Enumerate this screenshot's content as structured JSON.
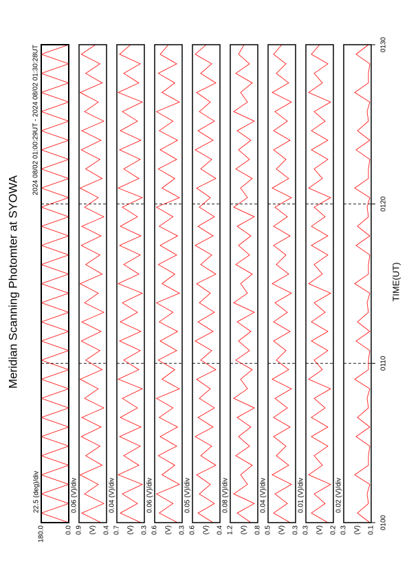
{
  "chart_data": {
    "type": "line",
    "title": "Meridian Scanning Photomter at SYOWA",
    "subtitle": "2024 08/02 01:00:29UT - 2024 08/02 01:30:28UT",
    "xlabel": "TIME(UT)",
    "xlim": [
      0,
      30
    ],
    "xticks": [
      {
        "value": 0,
        "label": "0100"
      },
      {
        "value": 10,
        "label": "0110"
      },
      {
        "value": 20,
        "label": "0120"
      },
      {
        "value": 30,
        "label": "0130"
      }
    ],
    "grid": true,
    "x": [
      0,
      0.6,
      1.2,
      1.8,
      2.4,
      3,
      3.6,
      4.2,
      4.8,
      5.4,
      6,
      6.6,
      7.2,
      7.8,
      8.4,
      9,
      9.6,
      10.2,
      10.8,
      11.4,
      12,
      12.6,
      13.2,
      13.8,
      14.4,
      15,
      15.6,
      16.2,
      16.8,
      17.4,
      18,
      18.6,
      19.2,
      19.8,
      20.4,
      21,
      21.6,
      22.2,
      22.8,
      23.4,
      24,
      24.6,
      25.2,
      25.8,
      26.4,
      27,
      27.6,
      28.2,
      28.8,
      29.4,
      30
    ],
    "panels": [
      {
        "scale_label": "22.5 (deg)/div",
        "color": "#ff0000",
        "ylim": [
          0,
          180
        ],
        "yticks": [
          {
            "value": 0,
            "label": "0.0"
          },
          {
            "value": 180,
            "label": "180.0"
          }
        ],
        "values": [
          0,
          180,
          0,
          180,
          0,
          180,
          0,
          180,
          0,
          180,
          0,
          180,
          0,
          180,
          0,
          180,
          0,
          180,
          0,
          180,
          0,
          180,
          0,
          180,
          0,
          180,
          0,
          180,
          0,
          180,
          0,
          180,
          0,
          180,
          0,
          180,
          0,
          180,
          0,
          180,
          0,
          180,
          0,
          180,
          0,
          180,
          0,
          180,
          0,
          180,
          0
        ]
      },
      {
        "scale_label": "0.06 (V)/div",
        "unit": "(V)",
        "color": "#ff0000",
        "ylim": [
          0.4,
          0.9
        ],
        "yticks": [
          0.4,
          0.9
        ],
        "values": [
          0.5,
          0.85,
          0.45,
          0.8,
          0.55,
          0.88,
          0.48,
          0.78,
          0.52,
          0.86,
          0.5,
          0.85,
          0.45,
          0.8,
          0.55,
          0.88,
          0.48,
          0.78,
          0.52,
          0.86,
          0.5,
          0.85,
          0.45,
          0.8,
          0.55,
          0.88,
          0.48,
          0.78,
          0.52,
          0.86,
          0.5,
          0.85,
          0.45,
          0.8,
          0.55,
          0.88,
          0.48,
          0.78,
          0.52,
          0.86,
          0.5,
          0.85,
          0.45,
          0.8,
          0.55,
          0.88,
          0.48,
          0.78,
          0.52,
          0.86,
          0.6
        ]
      },
      {
        "scale_label": "0.04 (V)/div",
        "unit": "(V)",
        "color": "#ff0000",
        "ylim": [
          0.3,
          0.7
        ],
        "yticks": [
          0.3,
          0.7
        ],
        "values": [
          0.35,
          0.65,
          0.4,
          0.62,
          0.33,
          0.68,
          0.38,
          0.6,
          0.36,
          0.66,
          0.35,
          0.65,
          0.4,
          0.62,
          0.33,
          0.68,
          0.38,
          0.6,
          0.36,
          0.66,
          0.35,
          0.65,
          0.4,
          0.62,
          0.33,
          0.68,
          0.38,
          0.6,
          0.36,
          0.66,
          0.35,
          0.65,
          0.4,
          0.62,
          0.33,
          0.68,
          0.38,
          0.6,
          0.36,
          0.66,
          0.35,
          0.65,
          0.4,
          0.62,
          0.33,
          0.68,
          0.38,
          0.6,
          0.36,
          0.66,
          0.5
        ]
      },
      {
        "scale_label": "0.06 (V)/div",
        "unit": "(V)",
        "color": "#ff0000",
        "ylim": [
          0.3,
          0.6
        ],
        "yticks": [
          0.3,
          0.6
        ],
        "values": [
          0.35,
          0.55,
          0.4,
          0.58,
          0.33,
          0.52,
          0.38,
          0.56,
          0.36,
          0.54,
          0.35,
          0.55,
          0.4,
          0.58,
          0.33,
          0.52,
          0.38,
          0.56,
          0.36,
          0.54,
          0.35,
          0.55,
          0.4,
          0.58,
          0.33,
          0.52,
          0.38,
          0.56,
          0.36,
          0.54,
          0.35,
          0.55,
          0.4,
          0.58,
          0.33,
          0.52,
          0.38,
          0.56,
          0.36,
          0.54,
          0.35,
          0.55,
          0.4,
          0.58,
          0.33,
          0.52,
          0.38,
          0.56,
          0.36,
          0.54,
          0.45
        ]
      },
      {
        "scale_label": "0.05 (V)/div",
        "unit": "(V)",
        "color": "#ff0000",
        "ylim": [
          0.4,
          0.6
        ],
        "yticks": [
          0.4,
          0.6
        ],
        "values": [
          0.45,
          0.56,
          0.44,
          0.55,
          0.47,
          0.57,
          0.43,
          0.54,
          0.46,
          0.58,
          0.45,
          0.56,
          0.44,
          0.55,
          0.47,
          0.57,
          0.43,
          0.54,
          0.46,
          0.58,
          0.45,
          0.56,
          0.44,
          0.55,
          0.47,
          0.57,
          0.43,
          0.54,
          0.46,
          0.58,
          0.45,
          0.56,
          0.44,
          0.55,
          0.47,
          0.57,
          0.43,
          0.54,
          0.46,
          0.58,
          0.45,
          0.56,
          0.44,
          0.55,
          0.47,
          0.57,
          0.43,
          0.54,
          0.46,
          0.58,
          0.5
        ]
      },
      {
        "scale_label": "0.08 (V)/div",
        "unit": "(V)",
        "color": "#ff0000",
        "ylim": [
          0.8,
          1.2
        ],
        "yticks": [
          0.8,
          1.2
        ],
        "values": [
          0.9,
          1.1,
          0.85,
          1.15,
          0.95,
          1.05,
          0.88,
          1.12,
          0.92,
          1.08,
          0.9,
          1.1,
          0.85,
          1.15,
          0.95,
          1.05,
          0.88,
          1.12,
          0.92,
          1.08,
          0.9,
          1.1,
          0.85,
          1.15,
          0.95,
          1.05,
          0.88,
          1.12,
          0.92,
          1.08,
          0.9,
          1.1,
          0.85,
          1.15,
          0.95,
          1.05,
          0.88,
          1.12,
          0.92,
          1.08,
          0.9,
          1.1,
          0.85,
          1.15,
          0.95,
          1.05,
          0.88,
          1.12,
          0.92,
          1.08,
          1.0
        ]
      },
      {
        "scale_label": "0.04 (V)/div",
        "unit": "(V)",
        "color": "#ff0000",
        "ylim": [
          0.3,
          0.5
        ],
        "yticks": [
          0.3,
          0.5
        ],
        "values": [
          0.34,
          0.46,
          0.36,
          0.45,
          0.33,
          0.47,
          0.35,
          0.44,
          0.37,
          0.46,
          0.34,
          0.46,
          0.36,
          0.45,
          0.33,
          0.47,
          0.35,
          0.44,
          0.37,
          0.46,
          0.34,
          0.46,
          0.36,
          0.45,
          0.33,
          0.47,
          0.35,
          0.44,
          0.37,
          0.46,
          0.34,
          0.46,
          0.36,
          0.45,
          0.33,
          0.47,
          0.35,
          0.44,
          0.37,
          0.46,
          0.34,
          0.46,
          0.36,
          0.45,
          0.33,
          0.47,
          0.35,
          0.44,
          0.37,
          0.46,
          0.4
        ]
      },
      {
        "scale_label": "0.01 (V)/div",
        "unit": "(V)",
        "color": "#ff0000",
        "ylim": [
          0.2,
          0.3
        ],
        "yticks": [
          0.2,
          0.3
        ],
        "values": [
          0.22,
          0.28,
          0.23,
          0.27,
          0.21,
          0.29,
          0.24,
          0.27,
          0.22,
          0.28,
          0.22,
          0.28,
          0.23,
          0.27,
          0.21,
          0.29,
          0.24,
          0.27,
          0.22,
          0.28,
          0.22,
          0.28,
          0.23,
          0.27,
          0.21,
          0.29,
          0.24,
          0.27,
          0.22,
          0.28,
          0.22,
          0.28,
          0.23,
          0.27,
          0.21,
          0.29,
          0.24,
          0.27,
          0.22,
          0.28,
          0.22,
          0.28,
          0.23,
          0.27,
          0.21,
          0.29,
          0.24,
          0.27,
          0.22,
          0.28,
          0.25
        ]
      },
      {
        "scale_label": "0.02 (V)/div",
        "unit": "(V)",
        "color": "#ff0000",
        "ylim": [
          0.1,
          0.3
        ],
        "yticks": [
          0.1,
          0.3
        ],
        "values": [
          0.11,
          0.2,
          0.12,
          0.13,
          0.11,
          0.22,
          0.12,
          0.12,
          0.11,
          0.21,
          0.11,
          0.2,
          0.12,
          0.13,
          0.11,
          0.22,
          0.12,
          0.12,
          0.11,
          0.21,
          0.11,
          0.2,
          0.12,
          0.13,
          0.11,
          0.22,
          0.12,
          0.12,
          0.11,
          0.21,
          0.11,
          0.2,
          0.12,
          0.13,
          0.11,
          0.22,
          0.12,
          0.12,
          0.11,
          0.21,
          0.11,
          0.2,
          0.12,
          0.13,
          0.11,
          0.22,
          0.12,
          0.12,
          0.11,
          0.21,
          0.12
        ]
      }
    ]
  }
}
